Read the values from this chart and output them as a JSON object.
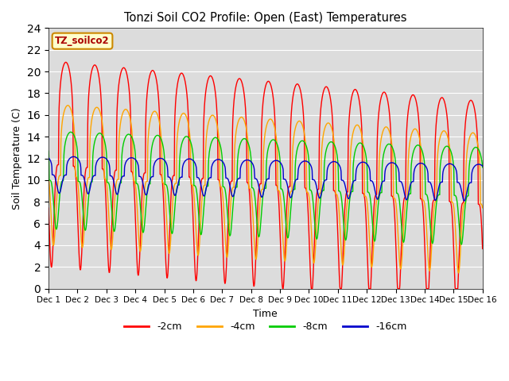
{
  "title": "Tonzi Soil CO2 Profile: Open (East) Temperatures",
  "xlabel": "Time",
  "ylabel": "Soil Temperature (C)",
  "ylim": [
    0,
    24
  ],
  "xlim": [
    0,
    15
  ],
  "legend_label": "TZ_soilco2",
  "series_labels": [
    "-2cm",
    "-4cm",
    "-8cm",
    "-16cm"
  ],
  "series_colors": [
    "#ff0000",
    "#ffa500",
    "#00cc00",
    "#0000cc"
  ],
  "background_color": "#dcdcdc",
  "tick_positions": [
    0,
    1,
    2,
    3,
    4,
    5,
    6,
    7,
    8,
    9,
    10,
    11,
    12,
    13,
    14,
    15
  ],
  "tick_labels": [
    "Dec 1",
    "Dec 2",
    "Dec 3",
    "Dec 4",
    "Dec 5",
    "Dec 6",
    "Dec 7",
    "Dec 8",
    "Dec 9",
    "Dec 10",
    "Dec 11",
    "Dec 12",
    "Dec 13",
    "Dec 14",
    "Dec 15",
    "Dec 16"
  ],
  "n_points": 1440,
  "mean_2cm": 11.5,
  "mean_4cm": 10.5,
  "mean_8cm": 10.0,
  "mean_16cm": 10.5,
  "amp_2cm": 9.5,
  "amp_4cm": 6.5,
  "amp_8cm": 4.5,
  "amp_16cm": 1.7,
  "phase_peak_2cm": 0.35,
  "phase_peak_4cm": 0.42,
  "phase_peak_8cm": 0.52,
  "phase_peak_16cm": 0.62,
  "trend_2cm": -0.25,
  "trend_4cm": -0.18,
  "trend_8cm": -0.1,
  "trend_16cm": -0.05,
  "sharpness": 4.0
}
